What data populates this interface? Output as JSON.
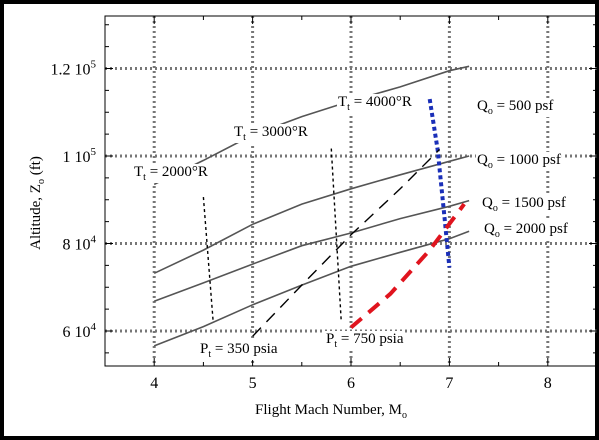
{
  "chart_data": {
    "type": "line",
    "title": "",
    "xlabel": "Flight Mach Number, M",
    "xlabel_sub": "o",
    "ylabel": "Altitude, Z",
    "ylabel_sub": "o",
    "ylabel_unit": " (ft)",
    "xlim": [
      3.5,
      8.5
    ],
    "ylim": [
      52000,
      132000
    ],
    "grid": true,
    "x_ticks": [
      {
        "value": 4,
        "label": "4"
      },
      {
        "value": 5,
        "label": "5"
      },
      {
        "value": 6,
        "label": "6"
      },
      {
        "value": 7,
        "label": "7"
      },
      {
        "value": 8,
        "label": "8"
      }
    ],
    "y_ticks": [
      {
        "value": 60000,
        "label": "6 10",
        "exp": "4"
      },
      {
        "value": 80000,
        "label": "8 10",
        "exp": "4"
      },
      {
        "value": 100000,
        "label": "1 10",
        "exp": "5"
      },
      {
        "value": 120000,
        "label": "1.2 10",
        "exp": "5"
      }
    ],
    "series": [
      {
        "key": "q500",
        "pre": "Q",
        "sub": "o",
        "post": " = 500 psf",
        "style": "solid",
        "color": "#555555",
        "x": [
          4.0,
          4.5,
          5.0,
          5.5,
          6.0,
          6.5,
          7.0,
          7.2
        ],
        "y": [
          93500,
          99000,
          104800,
          109000,
          112600,
          115800,
          119500,
          120500
        ]
      },
      {
        "key": "q1000",
        "pre": "Q",
        "sub": "o",
        "post": " = 1000 psf",
        "style": "solid",
        "color": "#555555",
        "x": [
          4.0,
          4.5,
          5.0,
          5.5,
          6.0,
          6.5,
          7.0,
          7.2
        ],
        "y": [
          73200,
          78500,
          84400,
          89000,
          92500,
          95700,
          98800,
          100000
        ]
      },
      {
        "key": "q1500",
        "pre": "Q",
        "sub": "o",
        "post": " = 1500 psf",
        "style": "solid",
        "color": "#555555",
        "x": [
          4.0,
          4.5,
          5.0,
          5.5,
          6.0,
          6.5,
          7.0,
          7.2
        ],
        "y": [
          66800,
          71000,
          75300,
          79500,
          82400,
          85700,
          88500,
          89800
        ]
      },
      {
        "key": "q2000",
        "pre": "Q",
        "sub": "o",
        "post": " = 2000 psf",
        "style": "solid",
        "color": "#555555",
        "x": [
          4.0,
          4.5,
          5.0,
          5.5,
          6.0,
          6.5,
          7.0,
          7.2
        ],
        "y": [
          56600,
          61000,
          66000,
          70500,
          74800,
          78000,
          81100,
          82800
        ]
      },
      {
        "key": "tt2000",
        "pre": "T",
        "sub": "t",
        "post": " = 2000°R",
        "style": "short-dash",
        "color": "#000000",
        "x": [
          4.5,
          4.6
        ],
        "y": [
          90600,
          62000
        ]
      },
      {
        "key": "tt3000",
        "pre": "T",
        "sub": "t",
        "post": " = 3000°R",
        "style": "short-dash",
        "color": "#000000",
        "x": [
          5.8,
          5.9
        ],
        "y": [
          101700,
          62300
        ]
      },
      {
        "key": "tt4000",
        "pre": "T",
        "sub": "t",
        "post": " = 4000°R",
        "style": "short-dash",
        "color": "#1a2fb8",
        "x": [
          6.8,
          6.88,
          6.95,
          7.0
        ],
        "y": [
          113000,
          101500,
          86000,
          74500
        ]
      },
      {
        "key": "pt350",
        "pre": "P",
        "sub": "t",
        "post": " = 350 psia",
        "style": "long-dash",
        "color": "#000000",
        "x": [
          5.0,
          5.5,
          6.0,
          6.5,
          6.9
        ],
        "y": [
          58800,
          70500,
          82000,
          92500,
          101500
        ]
      },
      {
        "key": "pt750",
        "pre": "P",
        "sub": "t",
        "post": " = 750 psia",
        "style": "long-dash",
        "color": "#e0141e",
        "x": [
          6.0,
          6.4,
          6.8,
          7.15
        ],
        "y": [
          60800,
          68500,
          78500,
          89000
        ]
      }
    ],
    "annotations": [
      {
        "ref": "q500",
        "pre": "Q",
        "sub": "o",
        "post": " = 500 psf"
      },
      {
        "ref": "q1000",
        "pre": "Q",
        "sub": "o",
        "post": " = 1000 psf"
      },
      {
        "ref": "q1500",
        "pre": "Q",
        "sub": "o",
        "post": " = 1500 psf"
      },
      {
        "ref": "q2000",
        "pre": "Q",
        "sub": "o",
        "post": " = 2000 psf"
      },
      {
        "ref": "tt2000",
        "pre": "T",
        "sub": "t",
        "post": " = 2000°R"
      },
      {
        "ref": "tt3000",
        "pre": "T",
        "sub": "t",
        "post": " = 3000°R"
      },
      {
        "ref": "tt4000",
        "pre": "T",
        "sub": "t",
        "post": " = 4000°R"
      },
      {
        "ref": "pt350",
        "pre": "P",
        "sub": "t",
        "post": " = 350 psia"
      },
      {
        "ref": "pt750",
        "pre": "P",
        "sub": "t",
        "post": " = 750 psia"
      }
    ]
  }
}
